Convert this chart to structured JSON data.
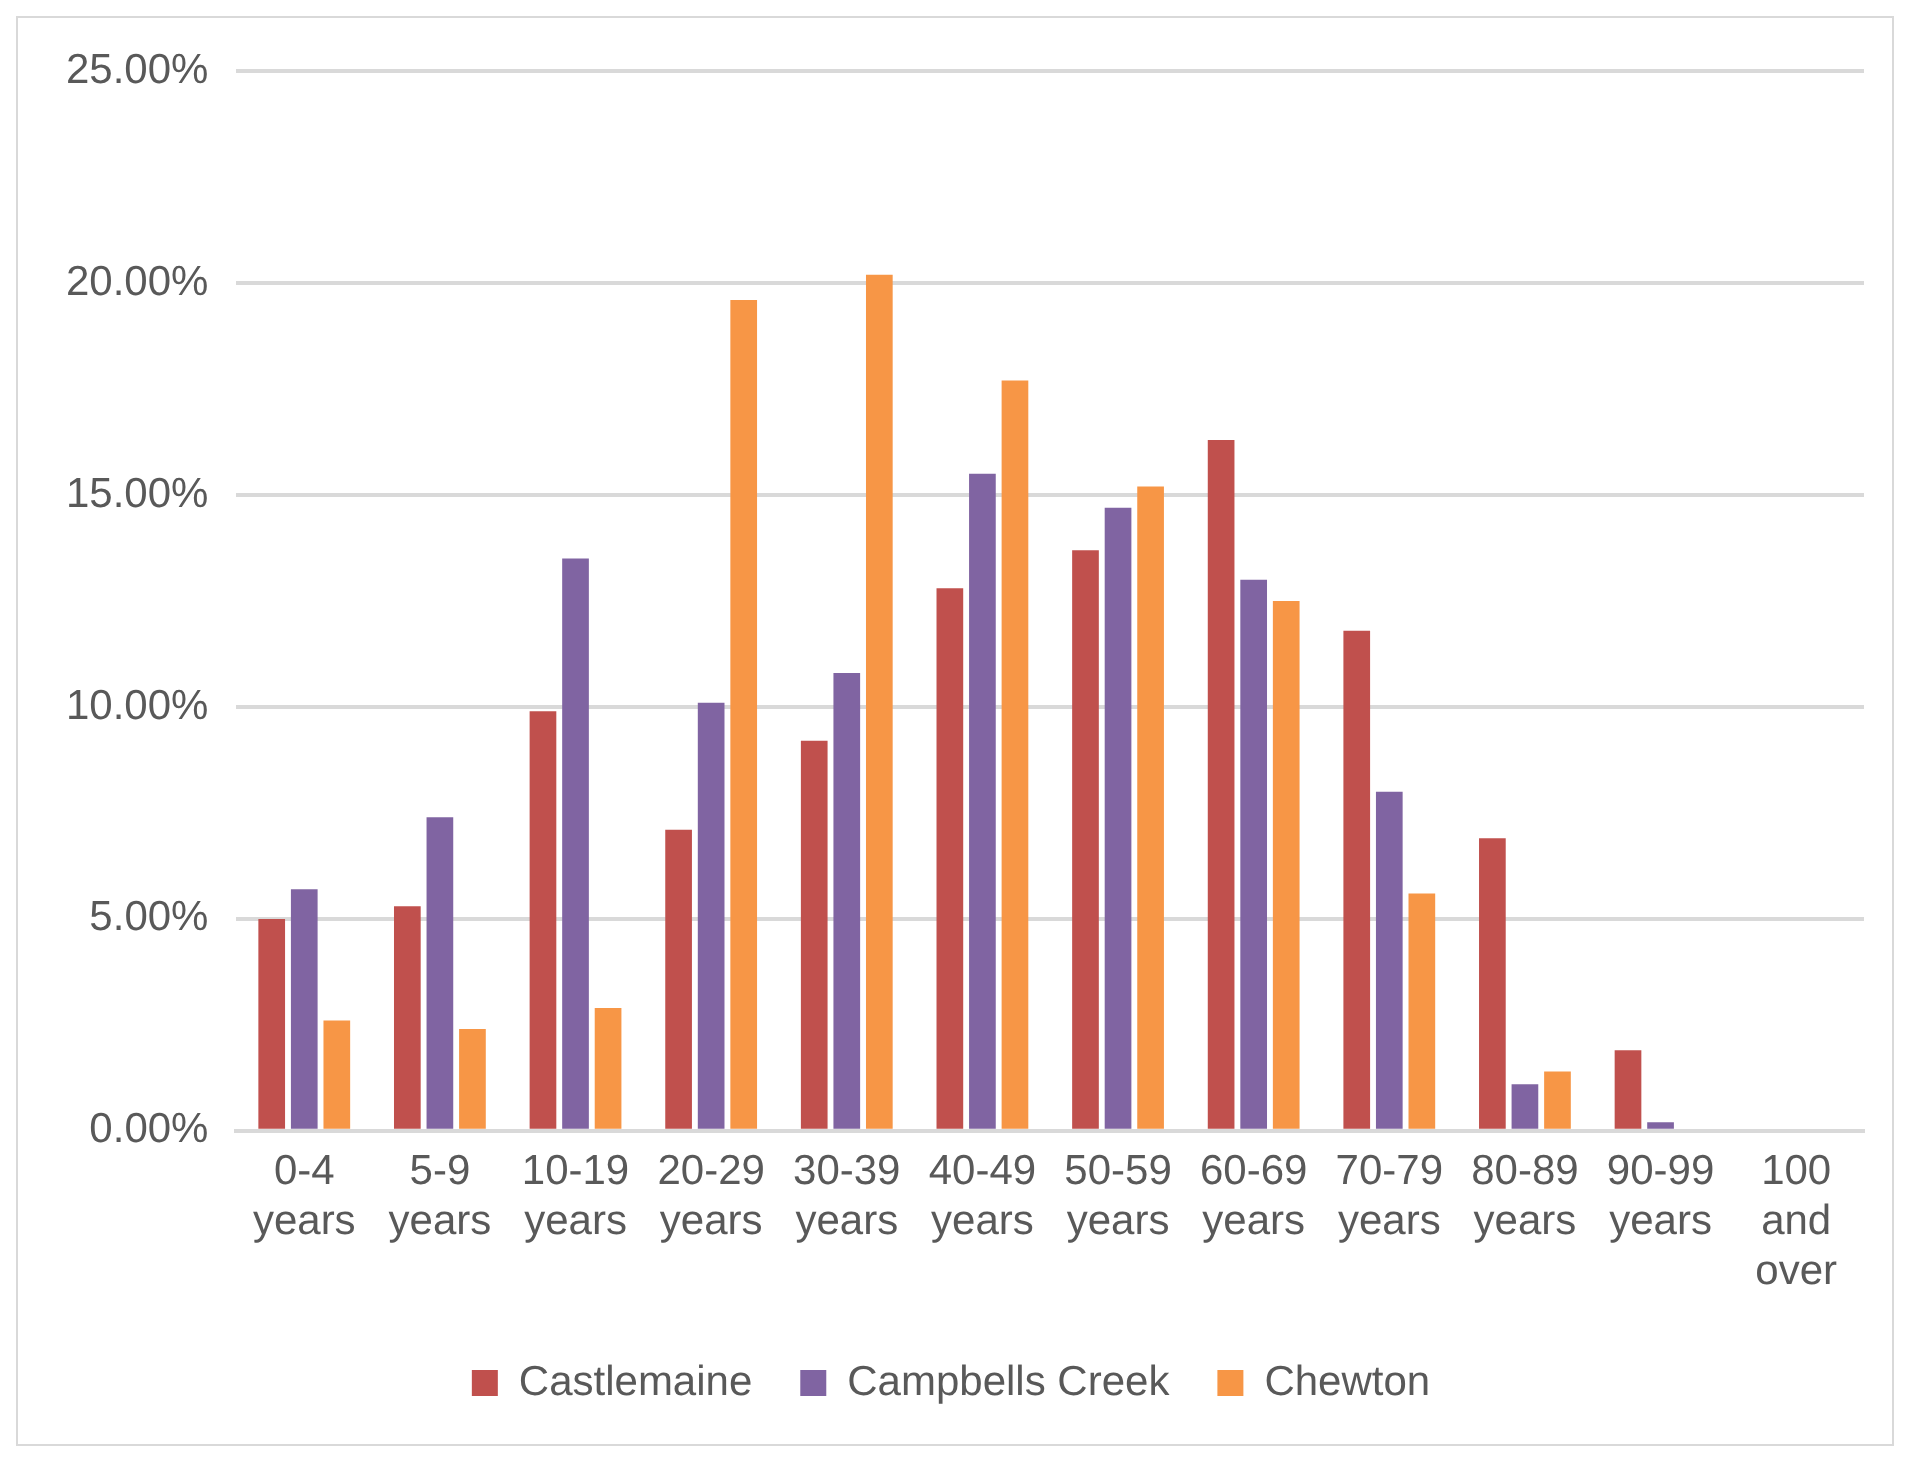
{
  "chart_data": {
    "type": "bar",
    "categories": [
      "0-4 years",
      "5-9 years",
      "10-19 years",
      "20-29 years",
      "30-39 years",
      "40-49 years",
      "50-59 years",
      "60-69 years",
      "70-79 years",
      "80-89 years",
      "90-99 years",
      "100 and over"
    ],
    "series": [
      {
        "name": "Castlemaine",
        "color": "#c0504d",
        "values": [
          5.0,
          5.3,
          9.9,
          7.1,
          9.2,
          12.8,
          13.7,
          16.3,
          11.8,
          6.9,
          1.9,
          0.0
        ]
      },
      {
        "name": "Campbells Creek",
        "color": "#8064a2",
        "values": [
          5.7,
          7.4,
          13.5,
          10.1,
          10.8,
          15.5,
          14.7,
          13.0,
          8.0,
          1.1,
          0.2,
          0.0
        ]
      },
      {
        "name": "Chewton",
        "color": "#f79646",
        "values": [
          2.6,
          2.4,
          2.9,
          19.6,
          20.2,
          17.7,
          15.2,
          12.5,
          5.6,
          1.4,
          0.0,
          0.0
        ]
      }
    ],
    "ylim": [
      0,
      25
    ],
    "yticks": [
      {
        "value": 0,
        "label": "0.00%"
      },
      {
        "value": 5,
        "label": "5.00%"
      },
      {
        "value": 10,
        "label": "10.00%"
      },
      {
        "value": 15,
        "label": "15.00%"
      },
      {
        "value": 20,
        "label": "20.00%"
      },
      {
        "value": 25,
        "label": "25.00%"
      }
    ],
    "grid": "y",
    "legend": "bottom"
  }
}
